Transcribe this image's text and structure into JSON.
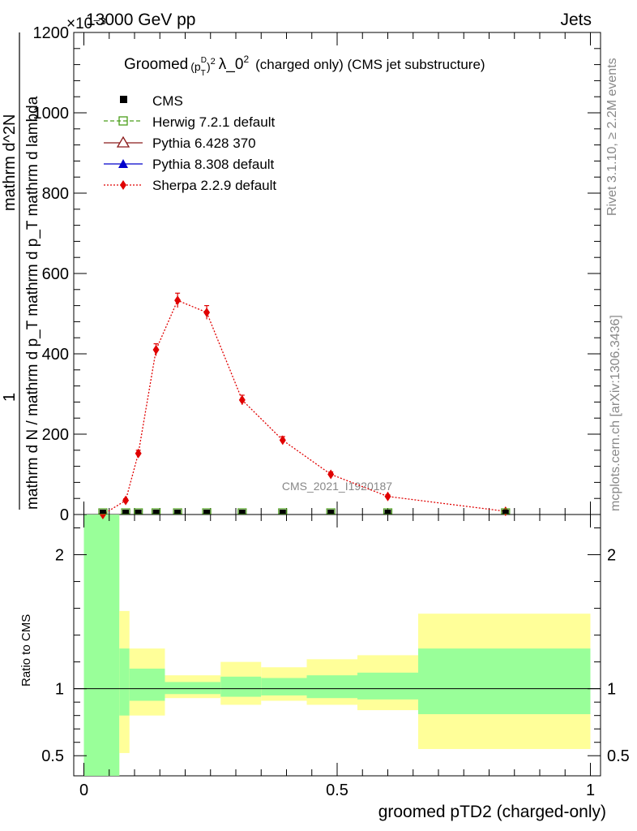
{
  "header": {
    "left": "13000 GeV pp",
    "right": "Jets",
    "exponent": "×10⁻³"
  },
  "title": "Groomed (p_T^D)^2 λ_0^2 (charged only) (CMS jet substructure)",
  "side": {
    "rivet": "Rivet 3.1.10, ≥ 2.2M events",
    "mcplots": "mcplots.cern.ch [arXiv:1306.3436]"
  },
  "watermark": "CMS_2021_I1920187",
  "legend": {
    "cms": "CMS",
    "herwig": "Herwig 7.2.1 default",
    "pythia6": "Pythia 6.428 370",
    "pythia8": "Pythia 8.308 default",
    "sherpa": "Sherpa 2.2.9 default"
  },
  "colors": {
    "herwig": "#4a9e1a",
    "pythia6": "#8b1a1a",
    "pythia8": "#0000cc",
    "sherpa": "#e00000",
    "band_inner": "#99ff99",
    "band_outer": "#ffff99"
  },
  "chart_data": [
    {
      "type": "scatter",
      "panel": "main",
      "xlim": [
        -0.02,
        1.02
      ],
      "ylim": [
        0,
        1200
      ],
      "yticks": [
        0,
        200,
        400,
        600,
        800,
        1000,
        1200
      ],
      "ylabel": {
        "top": "1",
        "middle": "mathrm d N / mathrm d p_T mathrm d p_T mathrm d lambda",
        "bottom": "mathrm d^2N"
      },
      "series": [
        {
          "name": "Sherpa 2.2.9 default",
          "x": [
            0.0375,
            0.0825,
            0.1075,
            0.1425,
            0.185,
            0.2425,
            0.3125,
            0.3925,
            0.4875,
            0.6,
            0.8325
          ],
          "y": [
            0,
            35,
            152,
            410,
            533,
            503,
            285,
            185,
            100,
            45,
            8
          ],
          "err": [
            0,
            4,
            8,
            15,
            18,
            17,
            12,
            9,
            6,
            4,
            2
          ]
        }
      ],
      "cms_x": [
        0.0375,
        0.0825,
        0.1075,
        0.1425,
        0.185,
        0.2425,
        0.3125,
        0.3925,
        0.4875,
        0.6,
        0.8325
      ]
    },
    {
      "type": "area",
      "panel": "ratio",
      "xlim": [
        -0.02,
        1.02
      ],
      "ylim": [
        0.35,
        2.3
      ],
      "yticks": [
        0.5,
        1,
        2
      ],
      "ytick_labels": [
        "0.5",
        "1",
        "2"
      ],
      "xticks": [
        0,
        0.5,
        1
      ],
      "xtick_labels": [
        "0",
        "0.5",
        "1"
      ],
      "xlabel": "groomed pTD2 (charged-only)",
      "ylabel": "Ratio to CMS",
      "bins": [
        {
          "lo": 0.0,
          "hi": 0.07,
          "in_lo": 0.3,
          "in_hi": 2.5,
          "out_lo": 0.3,
          "out_hi": 2.5
        },
        {
          "lo": 0.07,
          "hi": 0.09,
          "in_lo": 0.8,
          "in_hi": 1.3,
          "out_lo": 0.52,
          "out_hi": 1.58
        },
        {
          "lo": 0.09,
          "hi": 0.16,
          "in_lo": 0.91,
          "in_hi": 1.15,
          "out_lo": 0.8,
          "out_hi": 1.3
        },
        {
          "lo": 0.16,
          "hi": 0.27,
          "in_lo": 0.96,
          "in_hi": 1.05,
          "out_lo": 0.93,
          "out_hi": 1.1
        },
        {
          "lo": 0.27,
          "hi": 0.35,
          "in_lo": 0.94,
          "in_hi": 1.09,
          "out_lo": 0.88,
          "out_hi": 1.2
        },
        {
          "lo": 0.35,
          "hi": 0.44,
          "in_lo": 0.95,
          "in_hi": 1.08,
          "out_lo": 0.91,
          "out_hi": 1.16
        },
        {
          "lo": 0.44,
          "hi": 0.54,
          "in_lo": 0.93,
          "in_hi": 1.1,
          "out_lo": 0.88,
          "out_hi": 1.22
        },
        {
          "lo": 0.54,
          "hi": 0.66,
          "in_lo": 0.92,
          "in_hi": 1.12,
          "out_lo": 0.84,
          "out_hi": 1.25
        },
        {
          "lo": 0.66,
          "hi": 1.0,
          "in_lo": 0.81,
          "in_hi": 1.3,
          "out_lo": 0.55,
          "out_hi": 1.56
        }
      ]
    }
  ]
}
